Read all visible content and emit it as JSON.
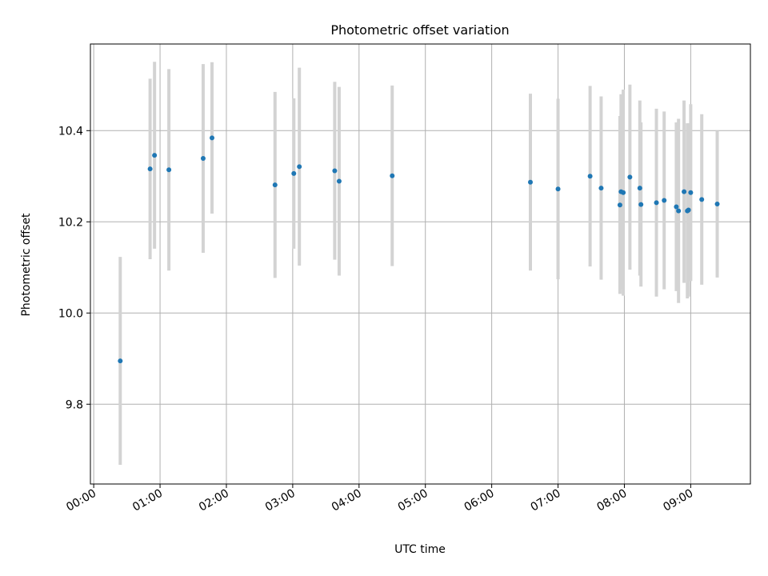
{
  "chart_data": {
    "type": "scatter",
    "title": "Photometric offset variation",
    "xlabel": "UTC time",
    "ylabel": "Photometric offset",
    "x_ticks": [
      "00:00",
      "01:00",
      "02:00",
      "03:00",
      "04:00",
      "05:00",
      "06:00",
      "07:00",
      "08:00",
      "09:00"
    ],
    "y_ticks": [
      "9.8",
      "10.0",
      "10.2",
      "10.4"
    ],
    "xlim": [
      "23:57",
      "09:54"
    ],
    "ylim": [
      9.625,
      10.59
    ],
    "grid": true,
    "marker_color": "#1f77b4",
    "errorbar_color": "#d3d3d3",
    "points": [
      {
        "x": "00:24",
        "y": 9.895,
        "err": 0.228
      },
      {
        "x": "00:51",
        "y": 10.316,
        "err": 0.198
      },
      {
        "x": "00:55",
        "y": 10.346,
        "err": 0.205
      },
      {
        "x": "01:08",
        "y": 10.314,
        "err": 0.221
      },
      {
        "x": "01:39",
        "y": 10.339,
        "err": 0.207
      },
      {
        "x": "01:47",
        "y": 10.384,
        "err": 0.166
      },
      {
        "x": "02:44",
        "y": 10.281,
        "err": 0.204
      },
      {
        "x": "03:01",
        "y": 10.306,
        "err": 0.165
      },
      {
        "x": "03:06",
        "y": 10.321,
        "err": 0.217
      },
      {
        "x": "03:38",
        "y": 10.312,
        "err": 0.195
      },
      {
        "x": "03:42",
        "y": 10.289,
        "err": 0.207
      },
      {
        "x": "04:30",
        "y": 10.301,
        "err": 0.198
      },
      {
        "x": "06:35",
        "y": 10.287,
        "err": 0.194
      },
      {
        "x": "07:00",
        "y": 10.272,
        "err": 0.198
      },
      {
        "x": "07:29",
        "y": 10.3,
        "err": 0.198
      },
      {
        "x": "07:39",
        "y": 10.274,
        "err": 0.201
      },
      {
        "x": "07:56",
        "y": 10.237,
        "err": 0.195
      },
      {
        "x": "07:57",
        "y": 10.266,
        "err": 0.214
      },
      {
        "x": "07:59",
        "y": 10.264,
        "err": 0.226
      },
      {
        "x": "08:05",
        "y": 10.298,
        "err": 0.203
      },
      {
        "x": "08:14",
        "y": 10.274,
        "err": 0.192
      },
      {
        "x": "08:15",
        "y": 10.238,
        "err": 0.18
      },
      {
        "x": "08:29",
        "y": 10.242,
        "err": 0.206
      },
      {
        "x": "08:36",
        "y": 10.247,
        "err": 0.195
      },
      {
        "x": "08:47",
        "y": 10.233,
        "err": 0.185
      },
      {
        "x": "08:49",
        "y": 10.224,
        "err": 0.202
      },
      {
        "x": "08:54",
        "y": 10.266,
        "err": 0.2
      },
      {
        "x": "08:57",
        "y": 10.224,
        "err": 0.192
      },
      {
        "x": "08:58",
        "y": 10.226,
        "err": 0.19
      },
      {
        "x": "09:00",
        "y": 10.264,
        "err": 0.194
      },
      {
        "x": "09:10",
        "y": 10.249,
        "err": 0.187
      },
      {
        "x": "09:24",
        "y": 10.239,
        "err": 0.161
      }
    ]
  }
}
